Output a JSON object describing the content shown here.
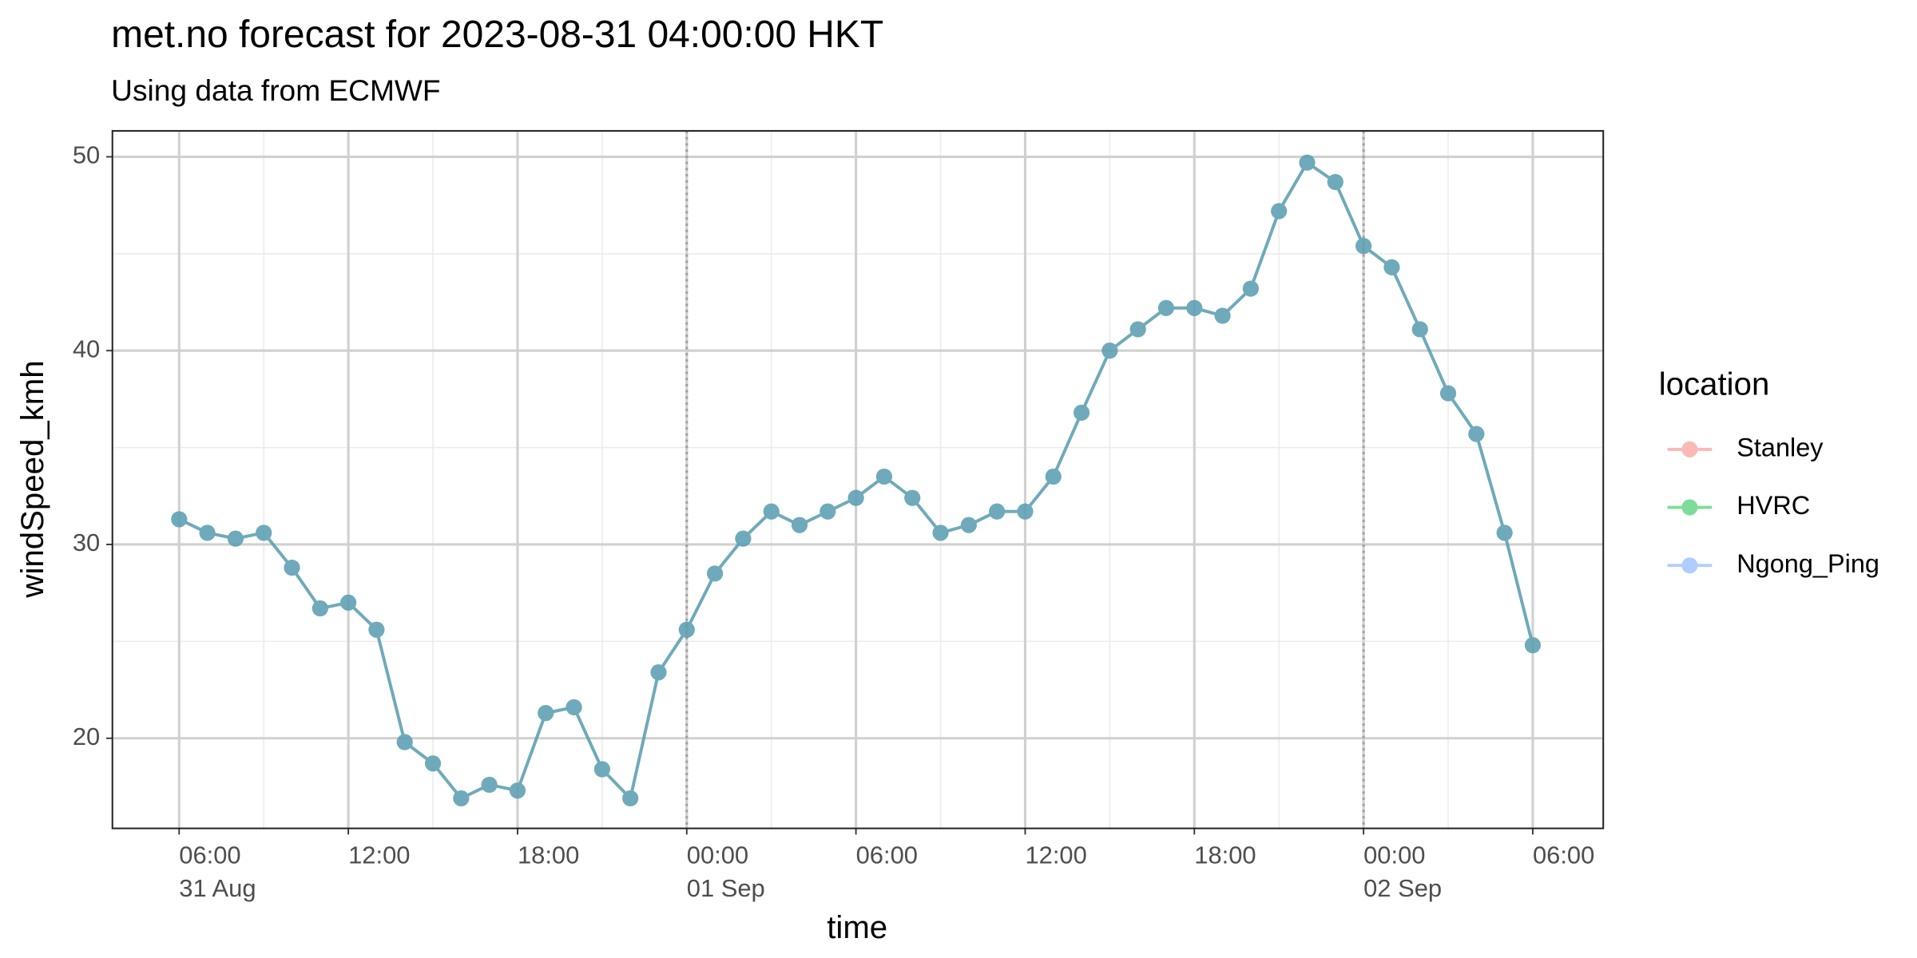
{
  "chart_data": {
    "type": "line",
    "title": "met.no forecast for 2023-08-31 04:00:00 HKT",
    "subtitle": "Using data from ECMWF",
    "x_label": "time",
    "y_label": "windSpeed_kmh",
    "legend_title": "location",
    "legend_position": "right",
    "grid": true,
    "alpha": 0.5,
    "x": [
      "31 Aug 06:00",
      "31 Aug 07:00",
      "31 Aug 08:00",
      "31 Aug 09:00",
      "31 Aug 10:00",
      "31 Aug 11:00",
      "31 Aug 12:00",
      "31 Aug 13:00",
      "31 Aug 14:00",
      "31 Aug 15:00",
      "31 Aug 16:00",
      "31 Aug 17:00",
      "31 Aug 18:00",
      "31 Aug 19:00",
      "31 Aug 20:00",
      "31 Aug 21:00",
      "31 Aug 22:00",
      "31 Aug 23:00",
      "01 Sep 00:00",
      "01 Sep 01:00",
      "01 Sep 02:00",
      "01 Sep 03:00",
      "01 Sep 04:00",
      "01 Sep 05:00",
      "01 Sep 06:00",
      "01 Sep 07:00",
      "01 Sep 08:00",
      "01 Sep 09:00",
      "01 Sep 10:00",
      "01 Sep 11:00",
      "01 Sep 12:00",
      "01 Sep 13:00",
      "01 Sep 14:00",
      "01 Sep 15:00",
      "01 Sep 16:00",
      "01 Sep 17:00",
      "01 Sep 18:00",
      "01 Sep 19:00",
      "01 Sep 20:00",
      "01 Sep 21:00",
      "01 Sep 22:00",
      "01 Sep 23:00",
      "02 Sep 00:00",
      "02 Sep 01:00",
      "02 Sep 02:00",
      "02 Sep 03:00",
      "02 Sep 04:00",
      "02 Sep 05:00",
      "02 Sep 06:00"
    ],
    "series": [
      {
        "name": "Stanley",
        "color": "#F8766D",
        "values": [
          31.3,
          30.6,
          30.3,
          30.6,
          28.8,
          26.7,
          27.0,
          25.6,
          19.8,
          18.7,
          16.9,
          17.6,
          17.3,
          21.3,
          21.6,
          18.4,
          16.9,
          23.4,
          25.6,
          28.5,
          30.3,
          31.7,
          31.0,
          31.7,
          32.4,
          33.5,
          32.4,
          30.6,
          31.0,
          31.7,
          31.7,
          33.5,
          36.8,
          40.0,
          41.1,
          42.2,
          42.2,
          41.8,
          43.2,
          47.2,
          49.7,
          48.7,
          45.4,
          44.3,
          41.1,
          37.8,
          35.7,
          30.6,
          24.8
        ]
      },
      {
        "name": "HVRC",
        "color": "#00BA38",
        "values": [
          31.3,
          30.6,
          30.3,
          30.6,
          28.8,
          26.7,
          27.0,
          25.6,
          19.8,
          18.7,
          16.9,
          17.6,
          17.3,
          21.3,
          21.6,
          18.4,
          16.9,
          23.4,
          25.6,
          28.5,
          30.3,
          31.7,
          31.0,
          31.7,
          32.4,
          33.5,
          32.4,
          30.6,
          31.0,
          31.7,
          31.7,
          33.5,
          36.8,
          40.0,
          41.1,
          42.2,
          42.2,
          41.8,
          43.2,
          47.2,
          49.7,
          48.7,
          45.4,
          44.3,
          41.1,
          37.8,
          35.7,
          30.6,
          24.8
        ]
      },
      {
        "name": "Ngong_Ping",
        "color": "#619CFF",
        "values": [
          31.3,
          30.6,
          30.3,
          30.6,
          28.8,
          26.7,
          27.0,
          25.6,
          19.8,
          18.7,
          16.9,
          17.6,
          17.3,
          21.3,
          21.6,
          18.4,
          16.9,
          23.4,
          25.6,
          28.5,
          30.3,
          31.7,
          31.0,
          31.7,
          32.4,
          33.5,
          32.4,
          30.6,
          31.0,
          31.7,
          31.7,
          33.5,
          36.8,
          40.0,
          41.1,
          42.2,
          42.2,
          41.8,
          43.2,
          47.2,
          49.7,
          48.7,
          45.4,
          44.3,
          41.1,
          37.8,
          35.7,
          30.6,
          24.8
        ]
      }
    ],
    "xlim": [
      "31 Aug 03:38",
      "02 Sep 08:30"
    ],
    "xticks": [
      {
        "value": "31 Aug 06:00",
        "label": [
          "06:00",
          "31 Aug"
        ]
      },
      {
        "value": "31 Aug 12:00",
        "label": [
          "12:00"
        ]
      },
      {
        "value": "31 Aug 18:00",
        "label": [
          "18:00"
        ]
      },
      {
        "value": "01 Sep 00:00",
        "label": [
          "00:00",
          "01 Sep"
        ]
      },
      {
        "value": "01 Sep 06:00",
        "label": [
          "06:00"
        ]
      },
      {
        "value": "01 Sep 12:00",
        "label": [
          "12:00"
        ]
      },
      {
        "value": "01 Sep 18:00",
        "label": [
          "18:00"
        ]
      },
      {
        "value": "02 Sep 00:00",
        "label": [
          "00:00",
          "02 Sep"
        ]
      },
      {
        "value": "02 Sep 06:00",
        "label": [
          "06:00"
        ]
      }
    ],
    "vlines": [
      "01 Sep 00:00",
      "02 Sep 00:00"
    ],
    "ylim": [
      15.35,
      51.34
    ],
    "yticks": [
      20,
      30,
      40,
      50
    ]
  }
}
